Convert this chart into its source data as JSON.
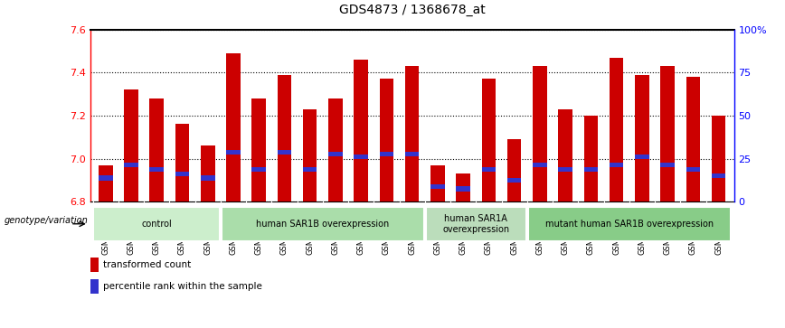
{
  "title": "GDS4873 / 1368678_at",
  "samples": [
    "GSM1279591",
    "GSM1279592",
    "GSM1279593",
    "GSM1279594",
    "GSM1279595",
    "GSM1279596",
    "GSM1279597",
    "GSM1279598",
    "GSM1279599",
    "GSM1279600",
    "GSM1279601",
    "GSM1279602",
    "GSM1279603",
    "GSM1279612",
    "GSM1279613",
    "GSM1279614",
    "GSM1279615",
    "GSM1279604",
    "GSM1279605",
    "GSM1279606",
    "GSM1279607",
    "GSM1279608",
    "GSM1279609",
    "GSM1279610",
    "GSM1279611"
  ],
  "bar_values": [
    6.97,
    7.32,
    7.28,
    7.16,
    7.06,
    7.49,
    7.28,
    7.39,
    7.23,
    7.28,
    7.46,
    7.37,
    7.43,
    6.97,
    6.93,
    7.37,
    7.09,
    7.43,
    7.23,
    7.2,
    7.47,
    7.39,
    7.43,
    7.38,
    7.2
  ],
  "percentile_values": [
    6.91,
    6.97,
    6.95,
    6.93,
    6.91,
    7.03,
    6.95,
    7.03,
    6.95,
    7.02,
    7.01,
    7.02,
    7.02,
    6.87,
    6.86,
    6.95,
    6.9,
    6.97,
    6.95,
    6.95,
    6.97,
    7.01,
    6.97,
    6.95,
    6.92
  ],
  "ymin": 6.8,
  "ymax": 7.6,
  "bar_color": "#cc0000",
  "percentile_color": "#3333cc",
  "groups": [
    {
      "label": "control",
      "start": 0,
      "end": 5,
      "color": "#cceecc"
    },
    {
      "label": "human SAR1B overexpression",
      "start": 5,
      "end": 13,
      "color": "#aaddaa"
    },
    {
      "label": "human SAR1A\noverexpression",
      "start": 13,
      "end": 17,
      "color": "#bbddbb"
    },
    {
      "label": "mutant human SAR1B overexpression",
      "start": 17,
      "end": 25,
      "color": "#88cc88"
    }
  ],
  "legend_label_bar": "transformed count",
  "legend_label_pct": "percentile rank within the sample",
  "yticks": [
    6.8,
    7.0,
    7.2,
    7.4,
    7.6
  ],
  "right_pct_ticks": [
    0,
    25,
    50,
    75,
    100
  ],
  "bar_width": 0.55,
  "genotype_label": "genotype/variation"
}
